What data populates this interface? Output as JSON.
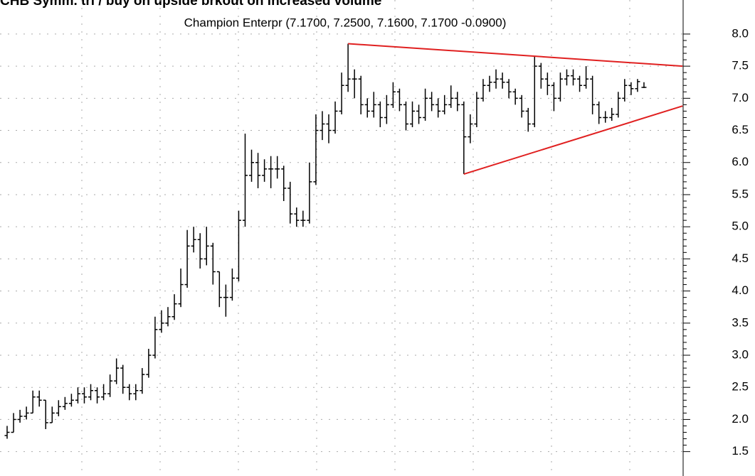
{
  "chart_data": {
    "type": "ohlc",
    "title": "CHB  Symm. tri / buy on upside brkout on increased volume",
    "subtitle": "Champion Enterpr (7.1700, 7.2500, 7.1600, 7.1700 -0.0900)",
    "color": "#000000",
    "grid": true,
    "ylim": [
      1.12,
      8.53
    ],
    "yticks": [
      1.5,
      {
        "value": 2,
        "label": "2.0"
      },
      2.5,
      {
        "value": 3,
        "label": "3.0"
      },
      3.5,
      {
        "value": 4,
        "label": "4.0"
      },
      4.5,
      {
        "value": 5,
        "label": "5.0"
      },
      5.5,
      {
        "value": 6,
        "label": "6.0"
      },
      6.5,
      {
        "value": 7,
        "label": "7.0"
      },
      7.5,
      {
        "value": 8,
        "label": "8.0"
      }
    ],
    "open": [
      1.75,
      1.8,
      2.0,
      2.05,
      2.1,
      2.35,
      2.3,
      1.95,
      2.1,
      2.2,
      2.25,
      2.3,
      2.4,
      2.35,
      2.45,
      2.35,
      2.4,
      2.6,
      2.8,
      2.5,
      2.4,
      2.45,
      2.7,
      3.0,
      3.4,
      3.5,
      3.6,
      3.8,
      4.1,
      4.7,
      4.8,
      4.5,
      4.7,
      4.3,
      3.9,
      3.9,
      4.2,
      5.1,
      5.8,
      6.0,
      5.8,
      5.9,
      5.9,
      5.9,
      5.6,
      5.2,
      5.1,
      5.1,
      5.7,
      6.5,
      6.6,
      6.5,
      6.8,
      7.2,
      7.3,
      7.3,
      6.9,
      6.8,
      6.9,
      6.7,
      6.9,
      7.1,
      6.9,
      6.6,
      6.8,
      6.7,
      7.0,
      6.9,
      6.8,
      6.9,
      7.0,
      6.9,
      6.4,
      6.6,
      7.0,
      7.2,
      7.25,
      7.3,
      7.25,
      7.1,
      7.0,
      6.8,
      6.6,
      7.5,
      7.3,
      7.2,
      7.0,
      7.3,
      7.35,
      7.3,
      7.2,
      7.3,
      6.9,
      6.7,
      6.7,
      6.75,
      7.0,
      7.2,
      7.15,
      7.17
    ],
    "high": [
      1.9,
      2.1,
      2.15,
      2.2,
      2.45,
      2.45,
      2.3,
      2.2,
      2.3,
      2.35,
      2.4,
      2.5,
      2.5,
      2.55,
      2.5,
      2.55,
      2.7,
      2.95,
      2.85,
      2.55,
      2.55,
      2.8,
      3.1,
      3.6,
      3.7,
      3.75,
      3.95,
      4.35,
      4.95,
      5.0,
      4.9,
      5.0,
      4.75,
      4.3,
      4.1,
      4.35,
      5.25,
      6.45,
      6.2,
      6.15,
      6.05,
      6.1,
      6.1,
      5.95,
      5.7,
      5.3,
      5.25,
      6.0,
      6.75,
      6.8,
      6.75,
      6.95,
      7.4,
      7.85,
      7.45,
      7.35,
      7.0,
      7.1,
      6.95,
      7.05,
      7.25,
      7.15,
      6.95,
      6.95,
      6.9,
      7.15,
      7.1,
      7.0,
      7.05,
      7.2,
      7.1,
      6.95,
      6.75,
      7.1,
      7.3,
      7.35,
      7.45,
      7.4,
      7.3,
      7.15,
      7.05,
      6.85,
      7.65,
      7.55,
      7.4,
      7.25,
      7.4,
      7.45,
      7.45,
      7.35,
      7.5,
      7.35,
      6.95,
      6.8,
      6.85,
      7.1,
      7.3,
      7.25,
      7.3,
      7.25
    ],
    "low": [
      1.7,
      1.8,
      1.95,
      2.0,
      2.1,
      2.2,
      1.85,
      1.95,
      2.05,
      2.15,
      2.2,
      2.25,
      2.25,
      2.3,
      2.25,
      2.3,
      2.35,
      2.55,
      2.4,
      2.3,
      2.3,
      2.4,
      2.65,
      2.95,
      3.35,
      3.45,
      3.55,
      3.75,
      4.05,
      4.6,
      4.35,
      4.4,
      4.1,
      3.75,
      3.6,
      3.85,
      4.15,
      5.0,
      5.7,
      5.6,
      5.7,
      5.6,
      5.75,
      5.4,
      5.05,
      5.0,
      5.0,
      5.05,
      5.65,
      6.35,
      6.3,
      6.45,
      6.75,
      7.1,
      7.0,
      6.75,
      6.7,
      6.7,
      6.55,
      6.6,
      6.85,
      6.8,
      6.5,
      6.55,
      6.6,
      6.65,
      6.8,
      6.7,
      6.75,
      6.85,
      6.8,
      5.82,
      6.3,
      6.55,
      6.95,
      7.1,
      7.15,
      7.15,
      7.0,
      6.9,
      6.7,
      6.48,
      6.55,
      7.15,
      7.05,
      6.8,
      6.95,
      7.2,
      7.2,
      7.1,
      7.15,
      6.75,
      6.6,
      6.62,
      6.65,
      6.7,
      6.95,
      7.05,
      7.1,
      7.16
    ],
    "close": [
      1.8,
      2.0,
      2.05,
      2.1,
      2.35,
      2.3,
      1.95,
      2.1,
      2.2,
      2.25,
      2.3,
      2.4,
      2.35,
      2.45,
      2.35,
      2.4,
      2.6,
      2.8,
      2.5,
      2.4,
      2.45,
      2.7,
      3.0,
      3.4,
      3.5,
      3.6,
      3.8,
      4.1,
      4.7,
      4.8,
      4.5,
      4.7,
      4.3,
      3.9,
      3.9,
      4.2,
      5.1,
      5.8,
      6.0,
      5.8,
      5.9,
      5.9,
      5.9,
      5.6,
      5.2,
      5.1,
      5.1,
      5.7,
      6.5,
      6.6,
      6.5,
      6.8,
      7.2,
      7.3,
      7.3,
      6.9,
      6.8,
      6.9,
      6.7,
      6.9,
      7.1,
      6.9,
      6.6,
      6.8,
      6.7,
      7.0,
      6.9,
      6.8,
      6.9,
      7.0,
      6.9,
      6.4,
      6.6,
      7.0,
      7.2,
      7.25,
      7.3,
      7.25,
      7.1,
      7.0,
      6.8,
      6.6,
      7.5,
      7.3,
      7.2,
      7.0,
      7.3,
      7.35,
      7.3,
      7.2,
      7.3,
      6.9,
      6.7,
      6.7,
      6.75,
      7.0,
      7.2,
      7.15,
      7.26,
      7.17
    ],
    "trendlines": [
      {
        "color": "#e02020",
        "x": [
          53,
          105
        ],
        "y": [
          7.85,
          7.5
        ]
      },
      {
        "color": "#e02020",
        "x": [
          71,
          105
        ],
        "y": [
          5.82,
          6.88
        ]
      }
    ]
  }
}
